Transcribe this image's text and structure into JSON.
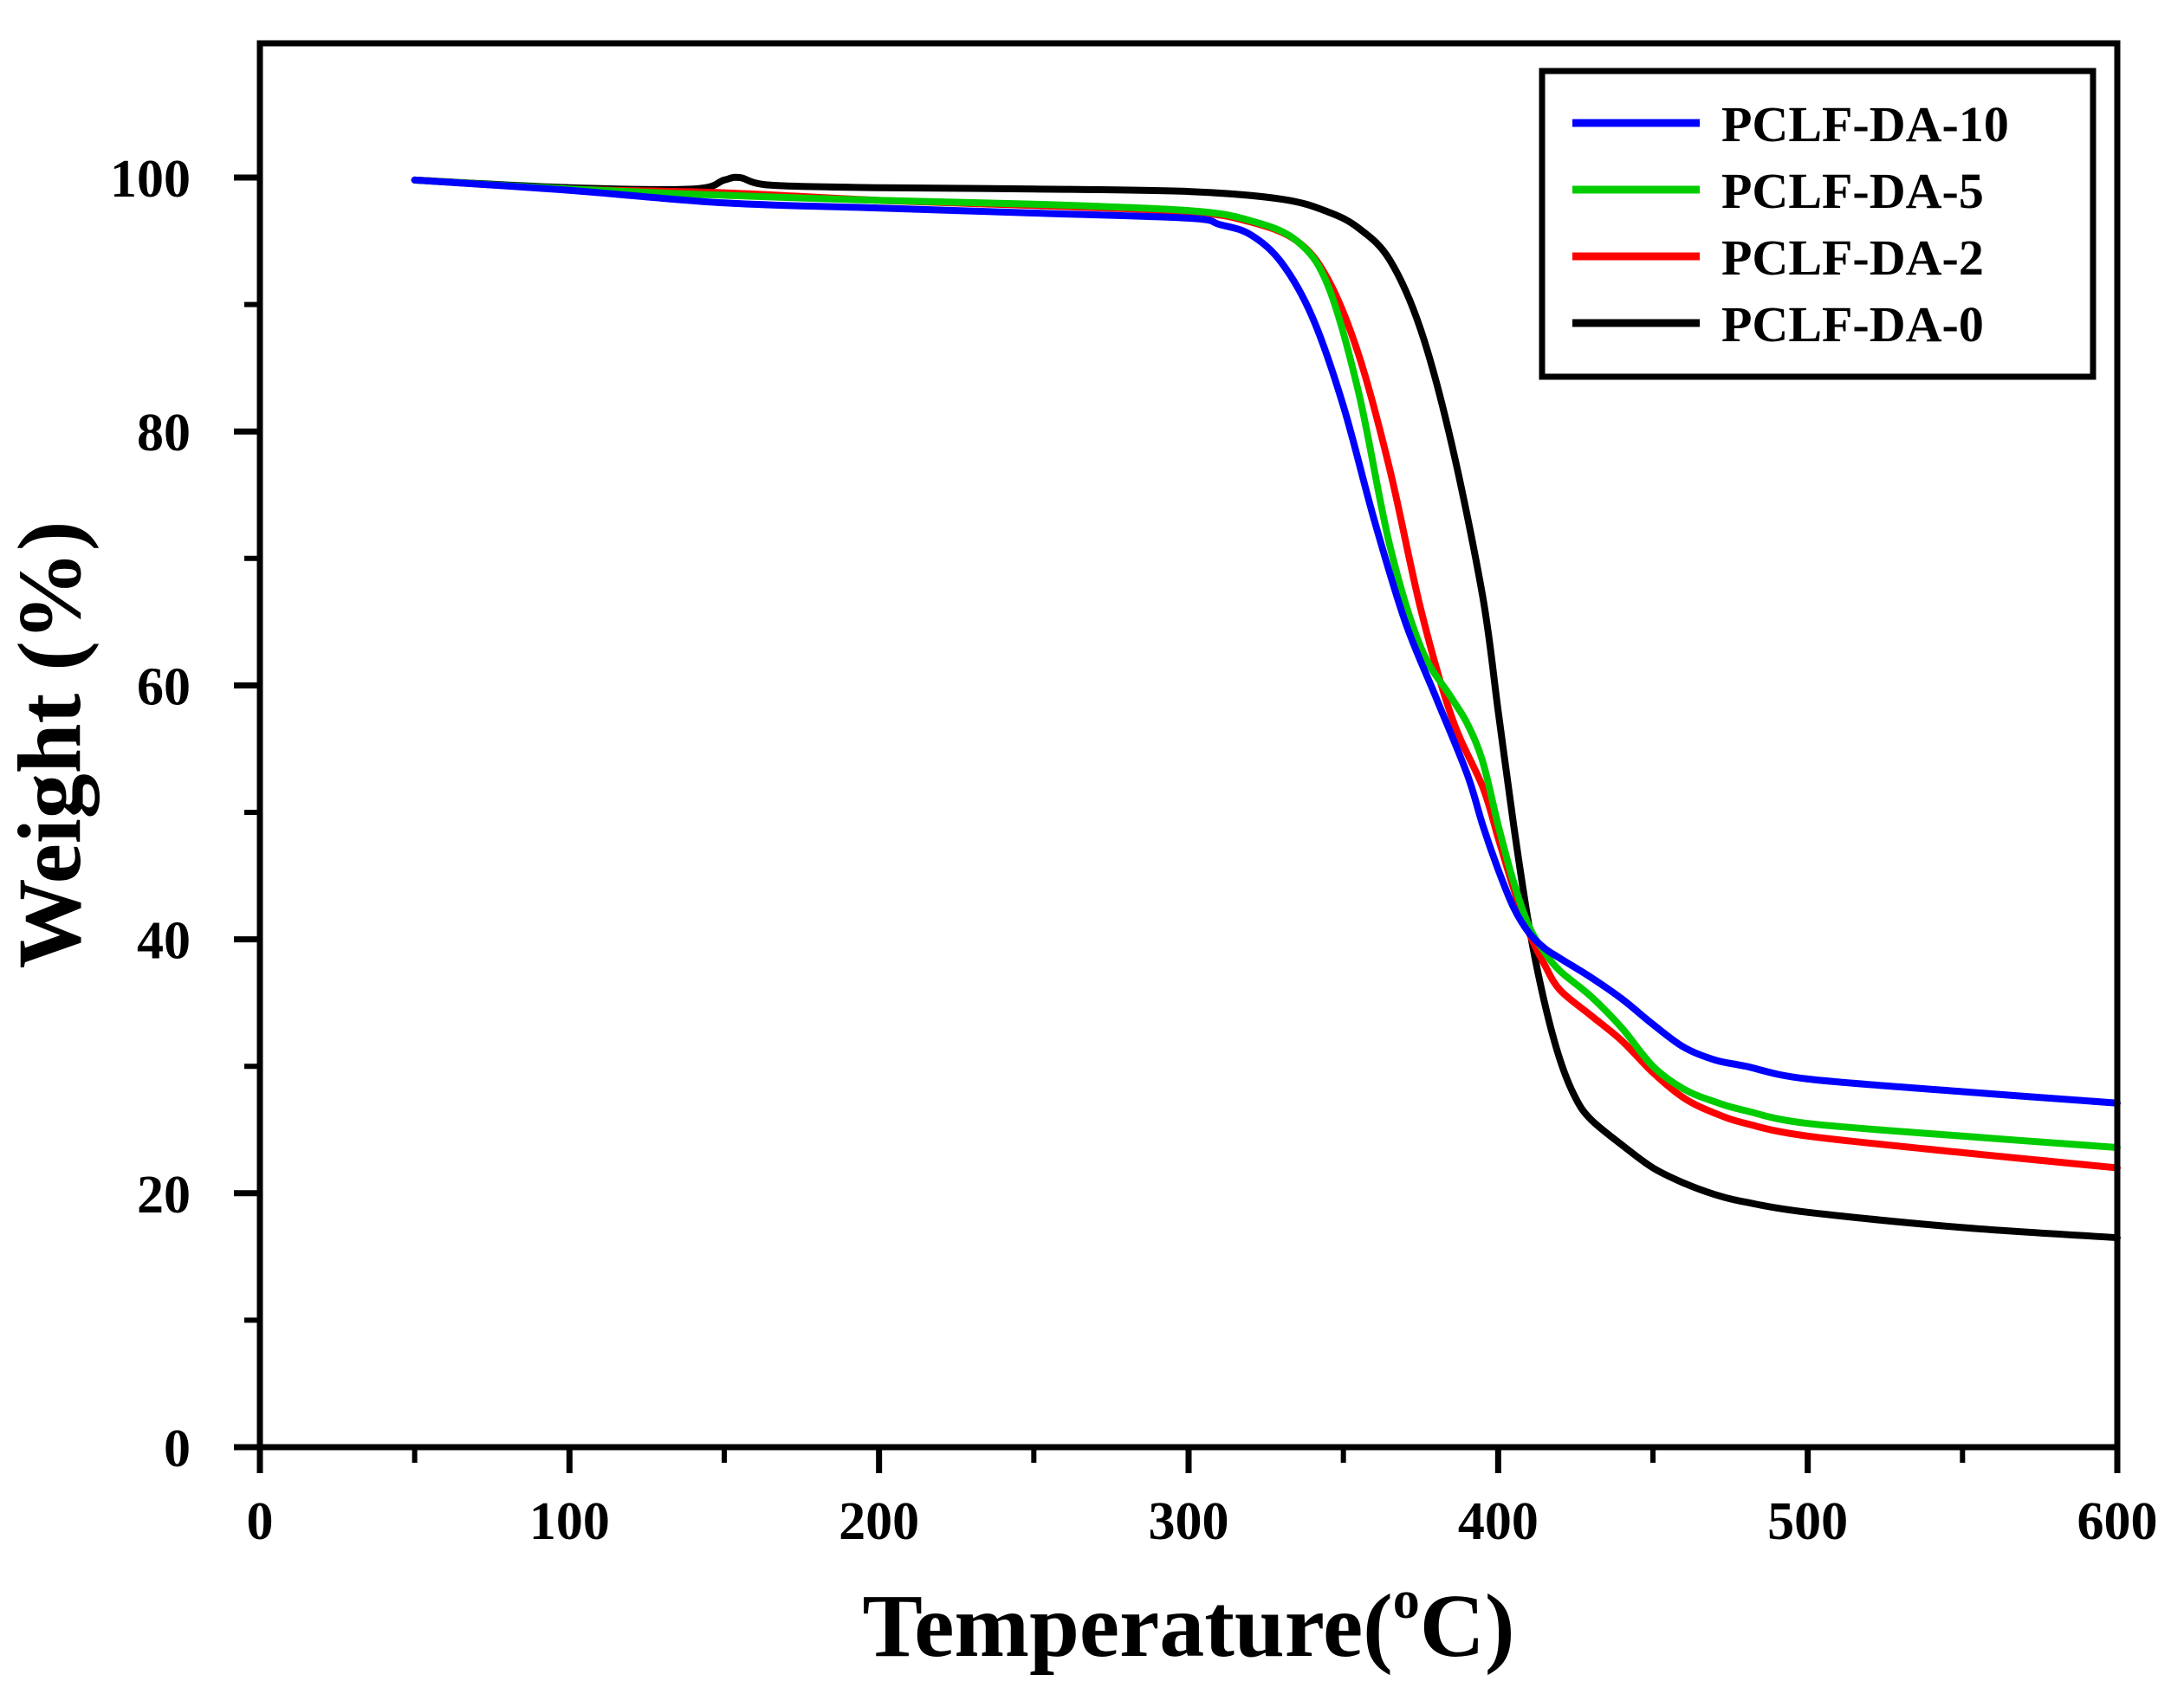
{
  "chart_data": {
    "type": "line",
    "title": "",
    "xlabel": "Temperature",
    "xlabel_unit_sup": "o",
    "xlabel_unit": "C",
    "ylabel": "Weight (%)",
    "xlim": [
      0,
      600
    ],
    "ylim": [
      0,
      110
    ],
    "x_ticks": [
      0,
      100,
      200,
      300,
      400,
      500,
      600
    ],
    "x_minor_ticks": [
      50,
      150,
      250,
      350,
      450,
      550
    ],
    "y_ticks": [
      0,
      20,
      40,
      60,
      80,
      100
    ],
    "y_minor_ticks": [
      10,
      30,
      50,
      70,
      90
    ],
    "legend_position": "top-right",
    "grid": false,
    "series": [
      {
        "name": "PCLF-DA-0",
        "color": "#000000",
        "x": [
          50,
          100,
          140,
          150,
          155,
          165,
          200,
          250,
          300,
          330,
          345,
          355,
          365,
          375,
          385,
          395,
          400,
          405,
          410,
          415,
          420,
          425,
          430,
          440,
          450,
          460,
          470,
          480,
          500,
          550,
          600
        ],
        "y": [
          99.8,
          99.2,
          99.1,
          99.8,
          100.0,
          99.4,
          99.2,
          99.1,
          98.9,
          98.3,
          97.3,
          96.0,
          93.5,
          88.0,
          79.0,
          67.0,
          58.0,
          49.0,
          41.0,
          35.0,
          30.5,
          27.5,
          25.8,
          23.8,
          22.0,
          20.8,
          19.9,
          19.3,
          18.5,
          17.3,
          16.5
        ]
      },
      {
        "name": "PCLF-DA-2",
        "color": "#ff0000",
        "x": [
          50,
          100,
          150,
          200,
          250,
          300,
          320,
          335,
          345,
          355,
          365,
          375,
          385,
          395,
          400,
          405,
          410,
          415,
          420,
          430,
          440,
          450,
          460,
          470,
          480,
          500,
          550,
          600
        ],
        "y": [
          99.8,
          99.1,
          98.8,
          98.2,
          97.8,
          97.3,
          96.5,
          95.0,
          92.0,
          86.0,
          77.0,
          66.0,
          57.5,
          52.0,
          48.0,
          44.0,
          40.5,
          38.0,
          36.0,
          34.0,
          32.0,
          29.5,
          27.5,
          26.3,
          25.5,
          24.5,
          23.2,
          22.0
        ]
      },
      {
        "name": "PCLF-DA-5",
        "color": "#00cc00",
        "x": [
          50,
          100,
          150,
          200,
          250,
          300,
          320,
          335,
          345,
          355,
          365,
          375,
          385,
          390,
          395,
          400,
          405,
          410,
          415,
          420,
          430,
          440,
          450,
          460,
          470,
          480,
          500,
          550,
          600
        ],
        "y": [
          99.8,
          99.1,
          98.6,
          98.2,
          97.9,
          97.4,
          96.6,
          95.0,
          91.5,
          83.0,
          71.0,
          63.0,
          59.0,
          57.0,
          54.0,
          49.0,
          44.5,
          41.0,
          39.0,
          37.5,
          35.5,
          33.0,
          30.0,
          28.2,
          27.2,
          26.5,
          25.5,
          24.5,
          23.6
        ]
      },
      {
        "name": "PCLF-DA-10",
        "color": "#0000ff",
        "x": [
          50,
          100,
          150,
          200,
          250,
          300,
          310,
          320,
          330,
          340,
          350,
          360,
          370,
          380,
          390,
          395,
          400,
          405,
          410,
          415,
          420,
          430,
          440,
          450,
          460,
          470,
          480,
          500,
          550,
          600
        ],
        "y": [
          99.8,
          99.0,
          98.0,
          97.6,
          97.2,
          96.8,
          96.3,
          95.5,
          93.3,
          89.0,
          82.0,
          73.0,
          65.0,
          59.0,
          53.0,
          49.0,
          45.5,
          42.5,
          40.5,
          39.3,
          38.5,
          37.0,
          35.3,
          33.3,
          31.5,
          30.5,
          30.0,
          29.0,
          28.0,
          27.1
        ]
      }
    ]
  }
}
